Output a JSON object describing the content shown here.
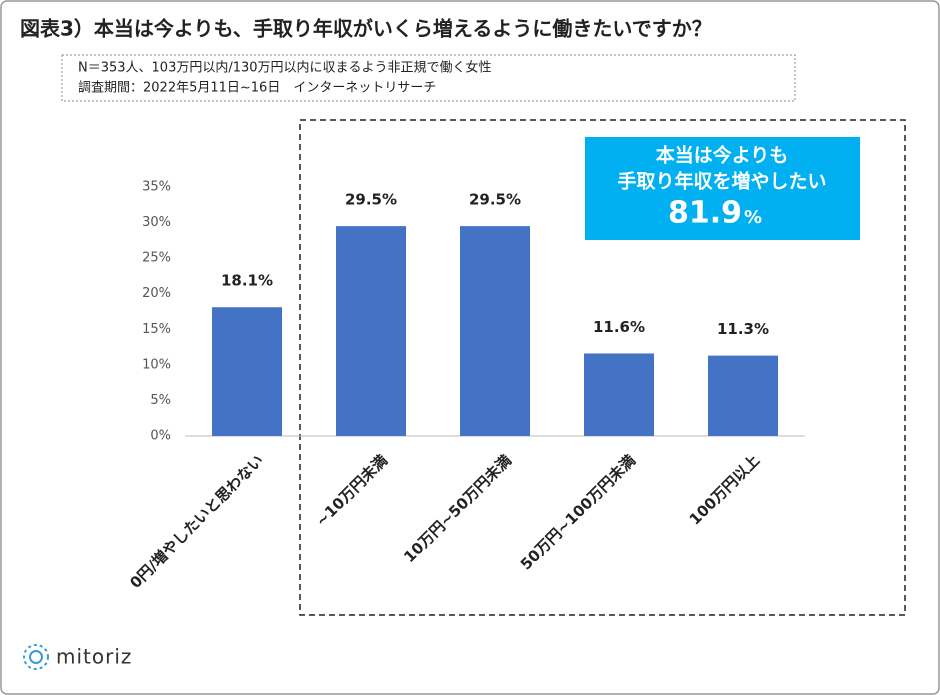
{
  "chart_data": {
    "type": "bar",
    "title": "図表3）本当は今よりも、手取り年収がいくら増えるように働きたいですか？",
    "notes": [
      "N＝353人、103万円以内/130万円以内に収まるよう非正規で働く女性",
      "調査期間：2022年5月11日~16日　インターネットリサーチ"
    ],
    "categories": [
      "0円/増やしたいと思わない",
      "~10万円未満",
      "10万円~50万円未満",
      "50万円~100万円未満",
      "100万円以上"
    ],
    "values": [
      18.1,
      29.5,
      29.5,
      11.6,
      11.3
    ],
    "value_labels": [
      "18.1%",
      "29.5%",
      "29.5%",
      "11.6%",
      "11.3%"
    ],
    "color": "#4472c4",
    "ylim": [
      0,
      35
    ],
    "yticks": [
      {
        "value": 0,
        "label": "0%"
      },
      {
        "value": 5,
        "label": "5%"
      },
      {
        "value": 10,
        "label": "10%"
      },
      {
        "value": 15,
        "label": "15%"
      },
      {
        "value": 20,
        "label": "20%"
      },
      {
        "value": 25,
        "label": "25%"
      },
      {
        "value": 30,
        "label": "30%"
      },
      {
        "value": 35,
        "label": "35%"
      }
    ],
    "grid": false,
    "callout": {
      "line1": "本当は今よりも",
      "line2": "手取り年収を増やしたい",
      "value": "81.9",
      "unit": "%",
      "color": "#00b0f0"
    },
    "logo": "mitoriz"
  }
}
